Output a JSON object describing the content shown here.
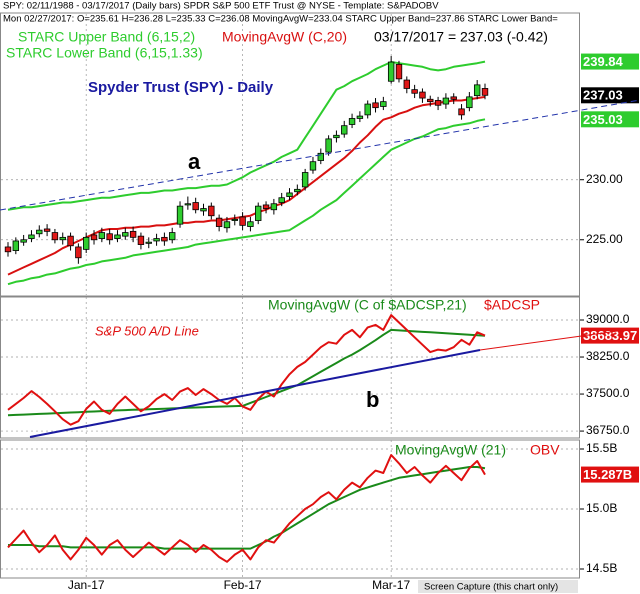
{
  "header": {
    "line1": "SPY: 02/11/1988 - 03/17/2017 (Daily bars)   SPDR S&P 500 ETF Trust @ NYSE   -   Template: S&PADOBV",
    "line2": "Mon 02/27/2017: O=235.61 H=236.28 L=235.33 C=236.08 MovingAvgW=233.04 STARC Upper Band=237.86 STARC Lower Band="
  },
  "footer": "Screen Capture (this chart only)",
  "chart_data": [
    {
      "type": "candlestick",
      "title": "Spyder Trust (SPY) - Daily",
      "last_quote": "03/17/2017 = 237.03 (-0.42)",
      "annotations": [
        "a"
      ],
      "grid": true,
      "up_color": "#2ecc2e",
      "down_color": "#e01818",
      "ylim": [
        220.4,
        243.8
      ],
      "yticks": [
        {
          "value": 225,
          "label": "225.00"
        },
        {
          "value": 230,
          "label": "230.00"
        }
      ],
      "candles": {
        "badge": "237.03",
        "open": [
          224.4,
          224.1,
          224.8,
          225.1,
          225.5,
          225.9,
          225.6,
          225.0,
          225.3,
          224.4,
          224.2,
          225.4,
          225.1,
          225.5,
          225.1,
          225.3,
          225.7,
          225.3,
          224.7,
          224.9,
          225.2,
          225.0,
          226.3,
          227.9,
          228.1,
          227.4,
          227.8,
          226.8,
          226.0,
          226.6,
          226.9,
          226.1,
          226.6,
          227.9,
          227.5,
          228.1,
          228.6,
          229.0,
          229.4,
          230.8,
          231.6,
          232.3,
          233.5,
          233.8,
          234.6,
          235.1,
          235.4,
          236.4,
          236.1,
          238.2,
          239.6,
          238.3,
          237.5,
          237.3,
          236.7,
          236.6,
          236.3,
          236.9,
          235.9,
          236.0,
          237.0,
          237.6
        ],
        "high": [
          224.8,
          225.2,
          225.4,
          225.8,
          226.2,
          226.3,
          225.9,
          225.6,
          225.6,
          224.7,
          225.6,
          225.8,
          226.0,
          225.9,
          225.8,
          226.0,
          226.1,
          225.6,
          225.2,
          225.5,
          225.6,
          226.0,
          228.2,
          228.6,
          228.5,
          228.0,
          228.1,
          227.1,
          226.9,
          227.1,
          227.3,
          226.9,
          228.1,
          228.2,
          228.4,
          228.9,
          229.3,
          229.6,
          230.9,
          231.9,
          232.6,
          233.7,
          234.1,
          234.9,
          235.5,
          235.7,
          236.6,
          236.8,
          236.9,
          240.3,
          239.9,
          238.6,
          237.9,
          237.6,
          237.0,
          236.9,
          237.2,
          237.2,
          236.3,
          237.3,
          238.3,
          238.0
        ],
        "low": [
          223.6,
          223.8,
          224.5,
          224.8,
          225.2,
          225.3,
          224.7,
          224.6,
          224.1,
          223.0,
          223.9,
          224.6,
          224.8,
          224.6,
          224.8,
          225.0,
          224.8,
          224.2,
          224.3,
          224.5,
          224.5,
          224.7,
          226.0,
          227.5,
          227.2,
          227.0,
          226.7,
          225.7,
          225.6,
          226.2,
          225.8,
          225.7,
          226.3,
          227.2,
          227.1,
          227.8,
          228.3,
          228.7,
          229.1,
          230.5,
          231.3,
          232.0,
          233.1,
          233.5,
          234.3,
          234.8,
          235.1,
          235.6,
          235.8,
          238.0,
          238.1,
          237.2,
          236.8,
          236.4,
          236.1,
          235.8,
          235.9,
          236.3,
          235.0,
          235.7,
          236.7,
          236.7
        ],
        "close": [
          224.0,
          224.9,
          225.0,
          225.4,
          225.8,
          225.7,
          225.0,
          225.2,
          224.5,
          223.5,
          225.2,
          225.0,
          225.6,
          225.0,
          225.4,
          225.6,
          225.2,
          224.6,
          224.8,
          225.1,
          224.9,
          225.6,
          227.8,
          228.0,
          227.5,
          227.6,
          227.0,
          226.1,
          226.5,
          226.7,
          226.2,
          226.5,
          227.8,
          227.6,
          228.0,
          228.5,
          228.9,
          229.2,
          230.6,
          231.5,
          232.2,
          233.4,
          233.7,
          234.5,
          235.1,
          235.3,
          236.3,
          236.0,
          236.5,
          239.8,
          238.4,
          237.6,
          237.2,
          236.8,
          236.5,
          236.2,
          236.8,
          236.7,
          235.4,
          236.9,
          237.9,
          237.03
        ]
      },
      "series": [
        {
          "name": "STARC Upper Band (6,15,2)",
          "color": "#2ecc2e",
          "badge": "239.84",
          "values": [
            227.5,
            227.6,
            227.7,
            227.7,
            227.8,
            227.9,
            228.0,
            228.1,
            228.1,
            228.2,
            228.3,
            228.4,
            228.5,
            228.5,
            228.6,
            228.7,
            228.8,
            228.9,
            228.9,
            229.0,
            229.1,
            229.1,
            229.2,
            229.3,
            229.3,
            229.4,
            229.5,
            229.5,
            229.6,
            229.9,
            230.2,
            230.6,
            230.9,
            231.2,
            231.5,
            231.9,
            232.2,
            232.5,
            233.5,
            234.5,
            235.5,
            236.5,
            237.5,
            237.8,
            238.2,
            238.5,
            238.8,
            239.2,
            239.5,
            239.8,
            239.7,
            239.6,
            239.5,
            239.4,
            239.2,
            239.1,
            239.2,
            239.4,
            239.5,
            239.6,
            239.7,
            239.84
          ]
        },
        {
          "name": "MovingAvgW (C,20)",
          "color": "#d81010",
          "values": [
            222.1,
            222.4,
            222.7,
            223.0,
            223.3,
            223.6,
            223.9,
            224.3,
            224.6,
            224.9,
            225.2,
            225.5,
            225.8,
            225.9,
            225.9,
            226.0,
            226.0,
            226.1,
            226.1,
            226.2,
            226.2,
            226.3,
            226.4,
            226.4,
            226.5,
            226.5,
            226.6,
            226.6,
            226.7,
            226.8,
            226.9,
            227.0,
            227.3,
            227.5,
            227.8,
            228.0,
            228.3,
            228.8,
            229.3,
            229.8,
            230.3,
            230.8,
            231.3,
            231.8,
            232.4,
            233.1,
            233.7,
            234.4,
            235.0,
            235.2,
            235.5,
            235.7,
            236.0,
            236.2,
            236.3,
            236.4,
            236.5,
            236.6,
            236.6,
            236.7,
            236.8,
            236.9
          ]
        },
        {
          "name": "STARC Lower Band (6,15,1.33)",
          "color": "#2ecc2e",
          "badge": "235.03",
          "values": [
            221.3,
            221.5,
            221.6,
            221.8,
            221.9,
            222.1,
            222.2,
            222.4,
            222.6,
            222.7,
            222.9,
            223.0,
            223.2,
            223.3,
            223.4,
            223.5,
            223.7,
            223.8,
            223.9,
            224.0,
            224.1,
            224.2,
            224.3,
            224.4,
            224.6,
            224.7,
            224.8,
            224.9,
            225.0,
            225.1,
            225.2,
            225.3,
            225.4,
            225.5,
            225.6,
            225.7,
            225.8,
            226.2,
            226.6,
            227.0,
            227.5,
            227.9,
            228.3,
            228.9,
            229.5,
            230.1,
            230.7,
            231.3,
            231.9,
            232.5,
            232.8,
            233.1,
            233.4,
            233.6,
            233.9,
            234.2,
            234.3,
            234.5,
            234.6,
            234.7,
            234.9,
            235.03
          ]
        }
      ]
    },
    {
      "type": "line",
      "annotations": [
        "S&P 500 A/D Line",
        "b"
      ],
      "grid": true,
      "ylim": [
        36630,
        39466
      ],
      "yticks": [
        {
          "value": 39000,
          "label": "39000.0"
        },
        {
          "value": 38250,
          "label": "38250.0"
        },
        {
          "value": 37500,
          "label": "37500.0"
        },
        {
          "value": 36750,
          "label": "36750.0"
        }
      ],
      "series": [
        {
          "name": "MovingAvgW (C of $ADCSP,21)",
          "color": "#1a8a1a",
          "values": [
            37070,
            37077,
            37084,
            37091,
            37098,
            37105,
            37112,
            37119,
            37126,
            37133,
            37140,
            37147,
            37154,
            37161,
            37168,
            37175,
            37180,
            37186,
            37192,
            37198,
            37204,
            37210,
            37216,
            37222,
            37228,
            37234,
            37240,
            37246,
            37250,
            37255,
            37260,
            37320,
            37380,
            37440,
            37500,
            37560,
            37620,
            37680,
            37770,
            37860,
            37950,
            38040,
            38130,
            38220,
            38300,
            38390,
            38490,
            38590,
            38700,
            38800,
            38790,
            38780,
            38770,
            38760,
            38750,
            38740,
            38730,
            38720,
            38710,
            38700,
            38690,
            38680
          ]
        },
        {
          "name": "$ADCSP",
          "color": "#e01010",
          "badge": "38683.97",
          "values": [
            37180,
            37300,
            37420,
            37560,
            37440,
            37300,
            37150,
            36990,
            36880,
            36950,
            37200,
            37350,
            37180,
            37100,
            37300,
            37450,
            37300,
            37150,
            37250,
            37400,
            37500,
            37380,
            37550,
            37620,
            37480,
            37600,
            37500,
            37380,
            37300,
            37420,
            37250,
            37180,
            37400,
            37550,
            37450,
            37700,
            37900,
            38050,
            38150,
            38300,
            38450,
            38550,
            38520,
            38700,
            38800,
            38650,
            38850,
            38900,
            38800,
            39100,
            38950,
            38800,
            38650,
            38500,
            38350,
            38400,
            38380,
            38450,
            38600,
            38500,
            38750,
            38683.97
          ]
        }
      ]
    },
    {
      "type": "line",
      "grid": true,
      "ylim": [
        14.425,
        15.575
      ],
      "yticks": [
        {
          "value": 15.5,
          "label": "15.5B"
        },
        {
          "value": 15.0,
          "label": "15.0B"
        },
        {
          "value": 14.5,
          "label": "14.5B"
        }
      ],
      "categories": [
        null,
        null,
        null,
        null,
        null,
        null,
        null,
        null,
        null,
        null,
        "Jan-17",
        null,
        null,
        null,
        null,
        null,
        null,
        null,
        null,
        null,
        null,
        null,
        null,
        null,
        null,
        null,
        null,
        null,
        null,
        null,
        "Feb-17",
        null,
        null,
        null,
        null,
        null,
        null,
        null,
        null,
        null,
        null,
        null,
        null,
        null,
        null,
        null,
        null,
        null,
        null,
        "Mar-17",
        null,
        null,
        null,
        null,
        null,
        null,
        null,
        null,
        null,
        null,
        null,
        null
      ],
      "series": [
        {
          "name": "MovingAvgW (21)",
          "color": "#1a8a1a",
          "values": [
            14.7,
            14.7,
            14.7,
            14.7,
            14.69,
            14.69,
            14.69,
            14.69,
            14.68,
            14.68,
            14.68,
            14.68,
            14.68,
            14.68,
            14.68,
            14.68,
            14.68,
            14.68,
            14.68,
            14.68,
            14.67,
            14.67,
            14.67,
            14.67,
            14.67,
            14.67,
            14.67,
            14.67,
            14.67,
            14.67,
            14.67,
            14.67,
            14.7,
            14.73,
            14.77,
            14.8,
            14.84,
            14.88,
            14.92,
            14.96,
            15.0,
            15.04,
            15.07,
            15.1,
            15.13,
            15.16,
            15.18,
            15.2,
            15.22,
            15.24,
            15.26,
            15.27,
            15.28,
            15.29,
            15.3,
            15.31,
            15.32,
            15.33,
            15.34,
            15.35,
            15.35,
            15.34
          ]
        },
        {
          "name": "OBV",
          "color": "#e01010",
          "badge": "15.287B",
          "values": [
            14.68,
            14.75,
            14.82,
            14.72,
            14.64,
            14.7,
            14.78,
            14.66,
            14.58,
            14.66,
            14.76,
            14.7,
            14.62,
            14.7,
            14.74,
            14.66,
            14.6,
            14.66,
            14.72,
            14.67,
            14.62,
            14.68,
            14.74,
            14.7,
            14.64,
            14.7,
            14.66,
            14.6,
            14.56,
            14.62,
            14.66,
            14.58,
            14.68,
            14.74,
            14.72,
            14.8,
            14.88,
            14.94,
            15.0,
            15.04,
            15.1,
            15.14,
            15.08,
            15.16,
            15.22,
            15.18,
            15.26,
            15.32,
            15.3,
            15.45,
            15.38,
            15.3,
            15.35,
            15.28,
            15.22,
            15.3,
            15.36,
            15.3,
            15.24,
            15.34,
            15.4,
            15.287
          ]
        }
      ]
    }
  ]
}
